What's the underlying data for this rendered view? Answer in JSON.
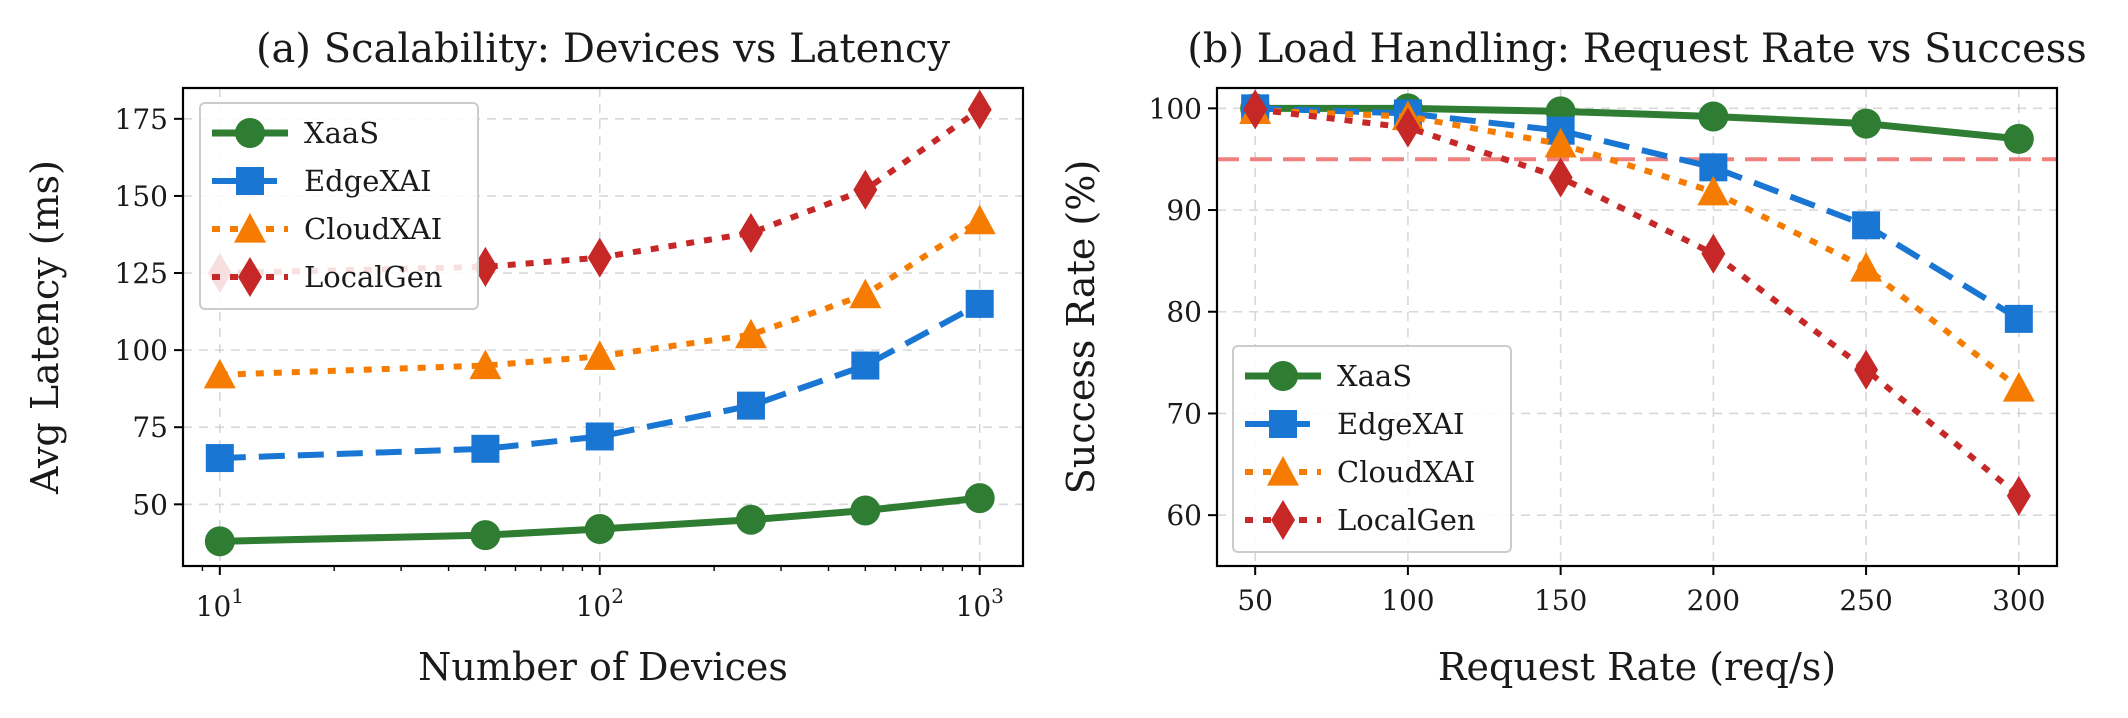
{
  "chart_data": [
    {
      "type": "line",
      "title": "(a) Scalability: Devices vs Latency",
      "xlabel": "Number of Devices",
      "ylabel": "Avg Latency (ms)",
      "xscale": "log",
      "xlim": [
        8,
        1300
      ],
      "ylim": [
        30,
        185
      ],
      "grid": true,
      "legend_position": "upper-left",
      "x": [
        10,
        50,
        100,
        250,
        500,
        1000
      ],
      "x_ticks": [
        {
          "value": 10,
          "base": "10",
          "exp": "1"
        },
        {
          "value": 100,
          "base": "10",
          "exp": "2"
        },
        {
          "value": 1000,
          "base": "10",
          "exp": "3"
        }
      ],
      "y_ticks": [
        {
          "value": 50,
          "label": "50"
        },
        {
          "value": 75,
          "label": "75"
        },
        {
          "value": 100,
          "label": "100"
        },
        {
          "value": 125,
          "label": "125"
        },
        {
          "value": 150,
          "label": "150"
        },
        {
          "value": 175,
          "label": "175"
        }
      ],
      "series": [
        {
          "name": "XaaS",
          "color": "#2e7d32",
          "marker": "circle",
          "dash": "solid",
          "values": [
            38,
            40,
            42,
            45,
            48,
            52
          ]
        },
        {
          "name": "EdgeXAI",
          "color": "#1976d2",
          "marker": "square",
          "dash": "dashed",
          "values": [
            65,
            68,
            72,
            82,
            95,
            115
          ]
        },
        {
          "name": "CloudXAI",
          "color": "#f57c00",
          "marker": "triangle",
          "dash": "dotted",
          "values": [
            92,
            95,
            98,
            105,
            118,
            142
          ]
        },
        {
          "name": "LocalGen",
          "color": "#c62828",
          "marker": "diamond",
          "dash": "dotted",
          "values": [
            125,
            127,
            130,
            138,
            152,
            178
          ]
        }
      ]
    },
    {
      "type": "line",
      "title": "(b) Load Handling: Request Rate vs Success",
      "xlabel": "Request Rate (req/s)",
      "ylabel": "Success Rate (%)",
      "xscale": "linear",
      "xlim": [
        37.5,
        312.5
      ],
      "ylim": [
        55,
        102
      ],
      "grid": true,
      "legend_position": "lower-left",
      "threshold": {
        "value": 95,
        "color": "#f08080"
      },
      "x": [
        50,
        100,
        150,
        200,
        250,
        300
      ],
      "x_ticks": [
        {
          "value": 50,
          "label": "50"
        },
        {
          "value": 100,
          "label": "100"
        },
        {
          "value": 150,
          "label": "150"
        },
        {
          "value": 200,
          "label": "200"
        },
        {
          "value": 250,
          "label": "250"
        },
        {
          "value": 300,
          "label": "300"
        }
      ],
      "y_ticks": [
        {
          "value": 60,
          "label": "60"
        },
        {
          "value": 70,
          "label": "70"
        },
        {
          "value": 80,
          "label": "80"
        },
        {
          "value": 90,
          "label": "90"
        },
        {
          "value": 100,
          "label": "100"
        }
      ],
      "series": [
        {
          "name": "XaaS",
          "color": "#2e7d32",
          "marker": "circle",
          "dash": "solid",
          "values": [
            100,
            100,
            99.7,
            99.2,
            98.5,
            97
          ]
        },
        {
          "name": "EdgeXAI",
          "color": "#1976d2",
          "marker": "square",
          "dash": "dashed",
          "values": [
            100,
            99.5,
            97.8,
            94.2,
            88.5,
            79.3
          ]
        },
        {
          "name": "CloudXAI",
          "color": "#f57c00",
          "marker": "triangle",
          "dash": "dotted",
          "values": [
            99.8,
            99.2,
            96.5,
            91.8,
            84.3,
            72.5
          ]
        },
        {
          "name": "LocalGen",
          "color": "#c62828",
          "marker": "diamond",
          "dash": "dotted",
          "values": [
            99.9,
            98.1,
            93.2,
            85.7,
            74.3,
            61.9
          ]
        }
      ]
    }
  ]
}
